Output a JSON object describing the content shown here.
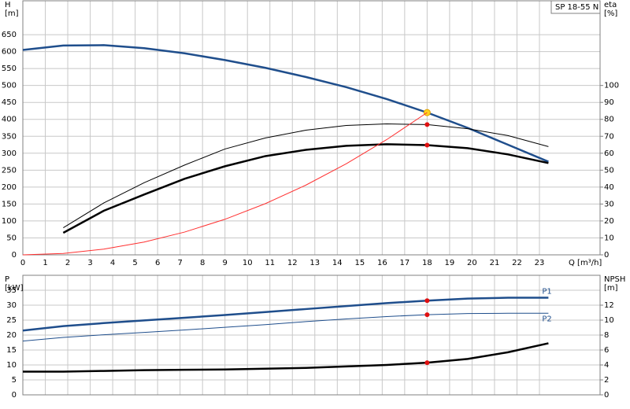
{
  "chart_data": [
    {
      "type": "line",
      "title": "SP 18-55 N",
      "y_label": "H",
      "y_unit": "[m]",
      "y2_label": "eta",
      "y2_unit": "[%]",
      "x_label": "Q [m³/h]",
      "xlim": [
        0,
        25.7
      ],
      "xticks": [
        0,
        1,
        2,
        3,
        4,
        5,
        6,
        7,
        8,
        9,
        10,
        11,
        12,
        13,
        14,
        15,
        16,
        17,
        18,
        19,
        20,
        21,
        22,
        23
      ],
      "xtick_labels": true,
      "ylim": [
        0,
        750
      ],
      "yticks": [
        0,
        50,
        100,
        150,
        200,
        250,
        300,
        350,
        400,
        450,
        500,
        550,
        600,
        650
      ],
      "y2lim": [
        0,
        150
      ],
      "y2ticks": [
        0,
        10,
        20,
        30,
        40,
        50,
        60,
        70,
        80,
        90,
        100
      ],
      "grid": true,
      "duty_point": 18,
      "series": [
        {
          "color": "#1f4e8c",
          "style": "thick",
          "x": [
            0,
            1.8,
            3.6,
            5.4,
            7.2,
            9,
            10.8,
            12.6,
            14.4,
            16.2,
            18,
            19.8,
            21.6,
            23.4
          ],
          "values": [
            605,
            618,
            619,
            610,
            595,
            575,
            552,
            525,
            495,
            460,
            420,
            375,
            325,
            275
          ],
          "marker_color": "#ffd21f"
        },
        {
          "color": "#000000",
          "style": "thin",
          "axis": "y2",
          "x": [
            1.8,
            3.6,
            5.4,
            7.2,
            9,
            10.8,
            12.6,
            14.4,
            16.2,
            18,
            19.8,
            21.6,
            23.4
          ],
          "values": [
            16,
            30.6,
            42.6,
            53,
            62.5,
            69,
            73.6,
            76.4,
            77.3,
            76.9,
            74.5,
            70.4,
            63.9
          ],
          "marker_color": "#e01010"
        },
        {
          "color": "#000000",
          "style": "thick",
          "axis": "y2",
          "x": [
            1.8,
            3.6,
            5.4,
            7.2,
            9,
            10.8,
            12.6,
            14.4,
            16.2,
            18,
            19.8,
            21.6,
            23.4
          ],
          "values": [
            13,
            26,
            35.6,
            44.9,
            52.3,
            58.3,
            62,
            64.4,
            65.3,
            64.8,
            63,
            59.3,
            54.2
          ],
          "marker_color": "#e01010"
        },
        {
          "color": "#ff3030",
          "style": "thin",
          "x": [
            0,
            1.8,
            3.6,
            5.4,
            7.2,
            9,
            10.8,
            12.6,
            14.4,
            16.2,
            18
          ],
          "values": [
            0,
            4.2,
            16.8,
            37.8,
            67.2,
            105,
            151.2,
            205.8,
            268.8,
            340.2,
            420
          ]
        }
      ]
    },
    {
      "type": "line",
      "y_label": "P",
      "y_unit": "[kW]",
      "y2_label": "NPSH",
      "y2_unit": "[m]",
      "xlim": [
        0,
        25.7
      ],
      "xticks": [
        0,
        1,
        2,
        3,
        4,
        5,
        6,
        7,
        8,
        9,
        10,
        11,
        12,
        13,
        14,
        15,
        16,
        17,
        18,
        19,
        20,
        21,
        22,
        23
      ],
      "xtick_labels": false,
      "ylim": [
        0,
        40
      ],
      "yticks": [
        0,
        5,
        10,
        15,
        20,
        25,
        30,
        35
      ],
      "y2lim": [
        0,
        16
      ],
      "y2ticks": [
        0,
        2,
        4,
        6,
        8,
        10,
        12
      ],
      "grid": true,
      "duty_point": 18,
      "series": [
        {
          "name": "P1",
          "color": "#1f4e8c",
          "style": "thick",
          "x": [
            0,
            1.8,
            3.6,
            5.4,
            7.2,
            9,
            10.8,
            12.6,
            14.4,
            16.2,
            18,
            19.8,
            21.6,
            23.4
          ],
          "values": [
            21.5,
            23,
            24,
            24.9,
            25.8,
            26.7,
            27.7,
            28.7,
            29.7,
            30.7,
            31.5,
            32.2,
            32.5,
            32.5
          ],
          "marker_color": "#e01010"
        },
        {
          "name": "P2",
          "color": "#1f4e8c",
          "style": "thin",
          "x": [
            0,
            1.8,
            3.6,
            5.4,
            7.2,
            9,
            10.8,
            12.6,
            14.4,
            16.2,
            18,
            19.8,
            21.6,
            23.4
          ],
          "values": [
            18,
            19.2,
            20.1,
            20.9,
            21.7,
            22.6,
            23.5,
            24.5,
            25.4,
            26.2,
            26.8,
            27.2,
            27.3,
            27.3
          ],
          "marker_color": "#e01010"
        },
        {
          "color": "#000000",
          "style": "thick",
          "axis": "y2",
          "x": [
            0,
            1.8,
            3.6,
            5.4,
            7.2,
            9,
            10.8,
            12.6,
            14.4,
            16.2,
            18,
            19.8,
            21.6,
            23.4
          ],
          "values": [
            3.1,
            3.1,
            3.2,
            3.3,
            3.35,
            3.4,
            3.5,
            3.6,
            3.8,
            4.0,
            4.3,
            4.8,
            5.7,
            6.9
          ],
          "marker_color": "#e01010"
        }
      ]
    }
  ]
}
